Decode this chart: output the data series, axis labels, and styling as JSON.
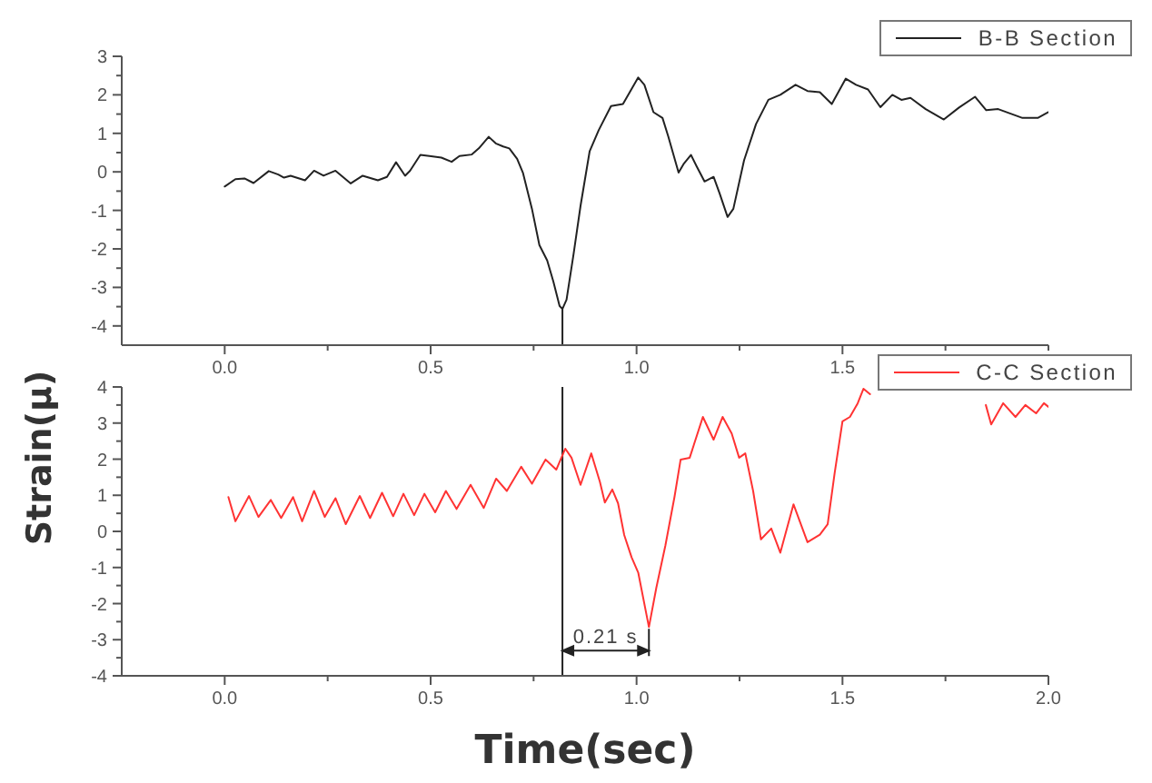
{
  "chart_data": [
    {
      "type": "line",
      "x": [
        0,
        0.026,
        0.048,
        0.07,
        0.107,
        0.13,
        0.144,
        0.16,
        0.195,
        0.217,
        0.24,
        0.269,
        0.306,
        0.335,
        0.372,
        0.394,
        0.416,
        0.438,
        0.45,
        0.475,
        0.497,
        0.526,
        0.551,
        0.57,
        0.6,
        0.617,
        0.641,
        0.658,
        0.676,
        0.691,
        0.71,
        0.724,
        0.746,
        0.764,
        0.783,
        0.798,
        0.813,
        0.82,
        0.83,
        0.847,
        0.864,
        0.886,
        0.908,
        0.938,
        0.967,
        1.004,
        1.019,
        1.041,
        1.063,
        1.077,
        1.102,
        1.114,
        1.132,
        1.146,
        1.165,
        1.187,
        1.202,
        1.221,
        1.235,
        1.261,
        1.29,
        1.32,
        1.349,
        1.386,
        1.415,
        1.445,
        1.474,
        1.508,
        1.533,
        1.562,
        1.592,
        1.621,
        1.643,
        1.665,
        1.702,
        1.746,
        1.783,
        1.822,
        1.849,
        1.878,
        1.937,
        1.974,
        2
      ],
      "series": [
        {
          "name": "B-B Section",
          "color": "#222222",
          "values": [
            -0.38,
            -0.19,
            -0.17,
            -0.29,
            0.02,
            -0.07,
            -0.15,
            -0.1,
            -0.22,
            0.03,
            -0.1,
            0.03,
            -0.3,
            -0.1,
            -0.22,
            -0.13,
            0.25,
            -0.1,
            0.03,
            0.44,
            0.41,
            0.37,
            0.26,
            0.41,
            0.45,
            0.61,
            0.91,
            0.74,
            0.66,
            0.61,
            0.34,
            -0.02,
            -0.96,
            -1.9,
            -2.3,
            -2.85,
            -3.48,
            -3.56,
            -3.32,
            -2.14,
            -0.88,
            0.53,
            1.08,
            1.71,
            1.76,
            2.45,
            2.26,
            1.55,
            1.4,
            0.92,
            -0.02,
            0.2,
            0.44,
            0.14,
            -0.25,
            -0.13,
            -0.57,
            -1.17,
            -0.96,
            0.3,
            1.24,
            1.87,
            2,
            2.26,
            2.1,
            2.07,
            1.76,
            2.42,
            2.26,
            2.14,
            1.68,
            2,
            1.87,
            1.92,
            1.63,
            1.36,
            1.67,
            1.95,
            1.6,
            1.63,
            1.4,
            1.4,
            1.55
          ]
        }
      ],
      "xlim": [
        -0.25,
        2
      ],
      "xticks": [
        {
          "value": 0,
          "label": "0.0"
        },
        {
          "value": 0.25,
          "label": null
        },
        {
          "value": 0.5,
          "label": "0.5"
        },
        {
          "value": 0.75,
          "label": null
        },
        {
          "value": 1,
          "label": "1.0"
        },
        {
          "value": 1.25,
          "label": null
        },
        {
          "value": 1.5,
          "label": "1.5"
        },
        {
          "value": 1.75,
          "label": null
        },
        {
          "value": 2,
          "label": null
        }
      ],
      "ylim": [
        -4.5,
        3
      ],
      "yticks": [
        -4,
        {
          "value": -3.5,
          "label": null
        },
        -3,
        {
          "value": -2.5,
          "label": null
        },
        -2,
        {
          "value": -1.5,
          "label": null
        },
        -1,
        {
          "value": -0.5,
          "label": null
        },
        0,
        {
          "value": 0.5,
          "label": null
        },
        1,
        {
          "value": 1.5,
          "label": null
        },
        2,
        {
          "value": 2.5,
          "label": null
        },
        3
      ],
      "ref_lines": [
        {
          "axis": "x",
          "value": 0.82
        }
      ],
      "legend": "top right"
    },
    {
      "type": "line",
      "x": [
        0.009,
        0.026,
        0.059,
        0.082,
        0.112,
        0.137,
        0.166,
        0.188,
        0.217,
        0.243,
        0.269,
        0.294,
        0.328,
        0.353,
        0.382,
        0.409,
        0.434,
        0.46,
        0.485,
        0.511,
        0.537,
        0.563,
        0.597,
        0.629,
        0.659,
        0.685,
        0.72,
        0.746,
        0.779,
        0.805,
        0.827,
        0.842,
        0.864,
        0.89,
        0.911,
        0.923,
        0.941,
        0.955,
        0.97,
        0.988,
        1.004,
        1.03,
        1.048,
        1.07,
        1.092,
        1.107,
        1.129,
        1.161,
        1.187,
        1.209,
        1.231,
        1.249,
        1.264,
        1.283,
        1.302,
        1.327,
        1.349,
        1.381,
        1.415,
        1.445,
        1.464,
        1.481,
        1.5,
        1.518,
        1.537,
        1.551,
        1.567,
        1.7,
        1.848,
        1.861,
        1.89,
        1.92,
        1.944,
        1.97,
        1.989,
        2
      ],
      "series": [
        {
          "name": "C-C Section",
          "color": "#ff3333",
          "values": [
            0.95,
            0.28,
            0.98,
            0.4,
            0.87,
            0.37,
            0.95,
            0.28,
            1.12,
            0.4,
            0.92,
            0.2,
            0.98,
            0.37,
            1.07,
            0.42,
            1.04,
            0.45,
            1.04,
            0.53,
            1.12,
            0.62,
            1.29,
            0.65,
            1.46,
            1.12,
            1.79,
            1.32,
            1.99,
            1.71,
            2.29,
            2.04,
            1.29,
            2.16,
            1.37,
            0.8,
            1.16,
            0.78,
            -0.1,
            -0.72,
            -1.14,
            -2.65,
            -1.56,
            -0.39,
            0.95,
            1.99,
            2.04,
            3.17,
            2.54,
            3.17,
            2.71,
            2.04,
            2.16,
            1.12,
            -0.22,
            0.08,
            -0.59,
            0.75,
            -0.3,
            -0.09,
            0.2,
            1.62,
            3.05,
            3.17,
            3.55,
            3.95,
            3.8,
            null,
            3.5,
            2.96,
            3.55,
            3.17,
            3.5,
            3.27,
            3.55,
            3.45
          ]
        }
      ],
      "xlim": [
        -0.25,
        2
      ],
      "xticks": [
        {
          "value": 0,
          "label": "0.0"
        },
        {
          "value": 0.25,
          "label": null
        },
        {
          "value": 0.5,
          "label": "0.5"
        },
        {
          "value": 0.75,
          "label": null
        },
        {
          "value": 1,
          "label": "1.0"
        },
        {
          "value": 1.25,
          "label": null
        },
        {
          "value": 1.5,
          "label": "1.5"
        },
        {
          "value": 1.75,
          "label": null
        },
        {
          "value": 2,
          "label": "2.0"
        }
      ],
      "ylim": [
        -4,
        4
      ],
      "yticks": [
        -4,
        {
          "value": -3.5,
          "label": null
        },
        -3,
        {
          "value": -2.5,
          "label": null
        },
        -2,
        {
          "value": -1.5,
          "label": null
        },
        -1,
        {
          "value": -0.5,
          "label": null
        },
        0,
        {
          "value": 0.5,
          "label": null
        },
        1,
        {
          "value": 1.5,
          "label": null
        },
        2,
        {
          "value": 2.5,
          "label": null
        },
        3,
        {
          "value": 3.5,
          "label": null
        },
        4
      ],
      "ref_lines": [
        {
          "axis": "x",
          "value": 0.82
        }
      ],
      "annotations": [
        {
          "text": "0.21 s",
          "x": 1.03,
          "y": -2.65
        }
      ],
      "xlabel": "Time(sec)",
      "ylabel": "Strain(μ)",
      "legend": "top right"
    }
  ]
}
